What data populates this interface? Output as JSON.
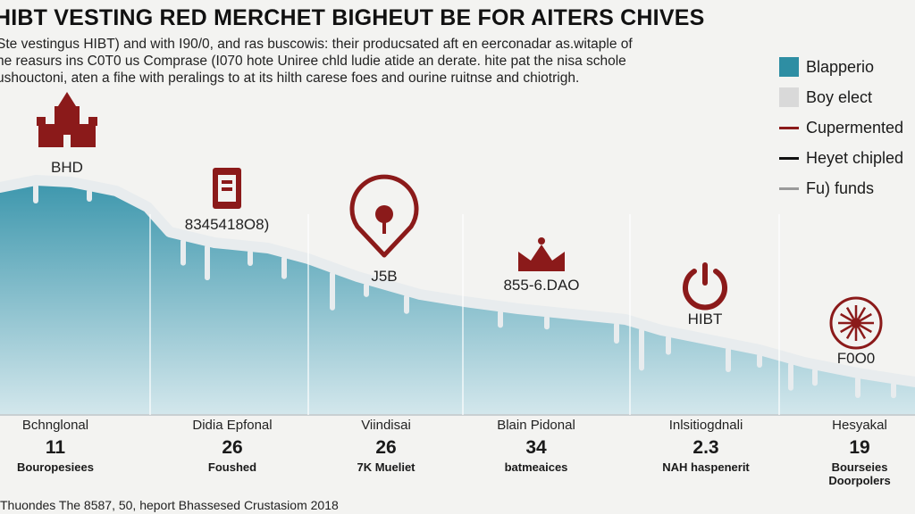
{
  "header": {
    "title": "HIBT VESTING RED MERCHET BIGHEUT BE FOR AITERS CHIVES",
    "subtitle_lines": [
      "Ste vestingus HIBT) and with I90/0, and ras buscowis: their producsated aft en eerconadar as.witaple of",
      "he reasurs ins C0T0 us Comprase (I070 hote Uniree chld ludie atide an derate. hite pat the nisa schole",
      "ushouctoni, aten a fihe with peralings to at its hilth carese foes and ourine ruitnse and chiotrigh."
    ]
  },
  "legend": [
    {
      "label": "Blapperio",
      "kind": "swatch",
      "color": "#2e8ea3"
    },
    {
      "label": "Boy elect",
      "kind": "swatch",
      "color": "#d9d9d9"
    },
    {
      "label": "Cupermented",
      "kind": "line",
      "color": "#8b1a1a"
    },
    {
      "label": "Heyet chipled",
      "kind": "line",
      "color": "#111111"
    },
    {
      "label": "Fu) funds",
      "kind": "line",
      "color": "#9a9a9a"
    }
  ],
  "icons": [
    {
      "name": "castle-icon",
      "label": "BHD"
    },
    {
      "name": "document-icon",
      "label": "8345418O8)"
    },
    {
      "name": "location-pin-icon",
      "label": "J5B"
    },
    {
      "name": "crown-icon",
      "label": "855-6.DAO"
    },
    {
      "name": "power-icon",
      "label": "HIBT"
    },
    {
      "name": "sunburst-icon",
      "label": "F0O0"
    }
  ],
  "categories": [
    {
      "name": "Bchnglonal",
      "value": "11",
      "sub": [
        "Bouropesiees"
      ]
    },
    {
      "name": "Didia Epfonal",
      "value": "26",
      "sub": [
        "Foushed"
      ]
    },
    {
      "name": "Viindisai",
      "value": "26",
      "sub": [
        "7K Mueliet"
      ]
    },
    {
      "name": "Blain Pidonal",
      "value": "34",
      "sub": [
        "batmeaices"
      ]
    },
    {
      "name": "Inlsitiogdnali",
      "value": "2.3",
      "sub": [
        "NAH haspenerit"
      ]
    },
    {
      "name": "Hesyakal",
      "value": "19",
      "sub": [
        "Bourseies",
        "Doorpolers"
      ]
    }
  ],
  "footer": {
    "source": "Thuondes The 8587, 50, heport Bhassesed Crustasiom 2018"
  },
  "colors": {
    "area_top": "#3d97ad",
    "area_bottom": "#d3e7ec",
    "cap": "#e8ecee",
    "accent_red": "#8b1a1a",
    "divider": "#ffffff"
  },
  "chart_data": {
    "type": "area",
    "categories": [
      "Bchnglonal",
      "Didia Epfonal",
      "Viindisai",
      "Blain Pidonal",
      "Inlsitiogdnali",
      "Hesyakal"
    ],
    "values": [
      11,
      26,
      26,
      34,
      2.3,
      19
    ],
    "title": "HIBT VESTING RED MERCHET BIGHEUT BE FOR AITERS CHIVES",
    "legend_position": "right",
    "grid": false
  }
}
